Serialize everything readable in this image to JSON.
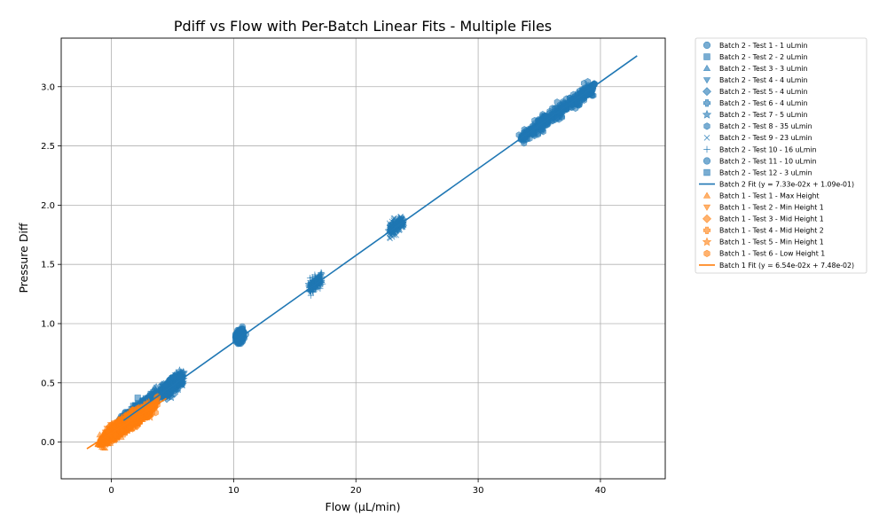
{
  "chart_data": {
    "type": "scatter",
    "title": "Pdiff vs Flow with Per-Batch Linear Fits - Multiple Files",
    "xlabel": "Flow (µL/min)",
    "ylabel": "Pressure Diff",
    "xlim": [
      -4.1,
      45.3
    ],
    "ylim": [
      -0.31,
      3.41
    ],
    "xticks": [
      0,
      10,
      20,
      30,
      40
    ],
    "yticks": [
      0.0,
      0.5,
      1.0,
      1.5,
      2.0,
      2.5,
      3.0
    ],
    "xtick_labels": [
      "0",
      "10",
      "20",
      "30",
      "40"
    ],
    "ytick_labels": [
      "0.0",
      "0.5",
      "1.0",
      "1.5",
      "2.0",
      "2.5",
      "3.0"
    ],
    "grid": true,
    "legend_position": "outside-right",
    "colors": {
      "batch2": "#1f77b4",
      "batch1": "#ff7f0e"
    },
    "series": [
      {
        "name": "Batch 2 - Test 1 - 1 uLmin",
        "batch": 2,
        "marker": "circle",
        "flow_center": 1.0,
        "flow_spread": 0.9,
        "pdiff_center": 0.18,
        "n": 130
      },
      {
        "name": "Batch 2 - Test 2 - 2 uLmin",
        "batch": 2,
        "marker": "square",
        "flow_center": 2.2,
        "flow_spread": 1.0,
        "pdiff_center": 0.27,
        "n": 130
      },
      {
        "name": "Batch 2 - Test 3 - 3 uLmin",
        "batch": 2,
        "marker": "triangle-up",
        "flow_center": 3.2,
        "flow_spread": 1.0,
        "pdiff_center": 0.35,
        "n": 130
      },
      {
        "name": "Batch 2 - Test 4 - 4 uLmin",
        "batch": 2,
        "marker": "triangle-down",
        "flow_center": 4.2,
        "flow_spread": 1.0,
        "pdiff_center": 0.42,
        "n": 130
      },
      {
        "name": "Batch 2 - Test 5 - 4 uLmin",
        "batch": 2,
        "marker": "diamond",
        "flow_center": 4.6,
        "flow_spread": 1.0,
        "pdiff_center": 0.45,
        "n": 130
      },
      {
        "name": "Batch 2 - Test 6 - 4 uLmin",
        "batch": 2,
        "marker": "plus-filled",
        "flow_center": 5.0,
        "flow_spread": 1.0,
        "pdiff_center": 0.48,
        "n": 130
      },
      {
        "name": "Batch 2 - Test 7 - 5 uLmin",
        "batch": 2,
        "marker": "star",
        "flow_center": 5.4,
        "flow_spread": 0.9,
        "pdiff_center": 0.52,
        "n": 130
      },
      {
        "name": "Batch 2 - Test 8 - 35 uLmin",
        "batch": 2,
        "marker": "hexagon",
        "flow_center": 36.5,
        "flow_spread": 6.0,
        "pdiff_center": 2.78,
        "n": 420
      },
      {
        "name": "Batch 2 - Test 9 - 23 uLmin",
        "batch": 2,
        "marker": "x",
        "flow_center": 23.3,
        "flow_spread": 1.1,
        "pdiff_center": 1.83,
        "n": 260
      },
      {
        "name": "Batch 2 - Test 10 - 16 uLmin",
        "batch": 2,
        "marker": "plus",
        "flow_center": 16.7,
        "flow_spread": 0.9,
        "pdiff_center": 1.34,
        "n": 230
      },
      {
        "name": "Batch 2 - Test 11 - 10 uLmin",
        "batch": 2,
        "marker": "circle",
        "flow_center": 10.5,
        "flow_spread": 0.5,
        "pdiff_center": 0.89,
        "n": 200
      },
      {
        "name": "Batch 2 - Test 12 - 3 uLmin",
        "batch": 2,
        "marker": "square",
        "flow_center": 3.0,
        "flow_spread": 1.0,
        "pdiff_center": 0.33,
        "n": 130
      },
      {
        "name": "Batch 1 - Test 1 - Max Height",
        "batch": 1,
        "marker": "triangle-up",
        "flow_center": 0.0,
        "flow_spread": 2.0,
        "pdiff_center": 0.06,
        "n": 200
      },
      {
        "name": "Batch 1 - Test 2 - Min Height 1",
        "batch": 1,
        "marker": "triangle-down",
        "flow_center": 0.5,
        "flow_spread": 2.2,
        "pdiff_center": 0.1,
        "n": 200
      },
      {
        "name": "Batch 1 - Test 3 - Mid Height 1",
        "batch": 1,
        "marker": "diamond",
        "flow_center": 1.0,
        "flow_spread": 2.5,
        "pdiff_center": 0.14,
        "n": 200
      },
      {
        "name": "Batch 1 - Test 4 - Mid Height 2",
        "batch": 1,
        "marker": "plus-filled",
        "flow_center": 1.5,
        "flow_spread": 2.5,
        "pdiff_center": 0.17,
        "n": 200
      },
      {
        "name": "Batch 1 - Test 5 - Min Height 1",
        "batch": 1,
        "marker": "star",
        "flow_center": 2.0,
        "flow_spread": 2.5,
        "pdiff_center": 0.21,
        "n": 200
      },
      {
        "name": "Batch 1 - Test 6 - Low Height 1",
        "batch": 1,
        "marker": "hexagon",
        "flow_center": 2.5,
        "flow_spread": 2.4,
        "pdiff_center": 0.24,
        "n": 200
      }
    ],
    "fits": [
      {
        "name": "Batch 2 Fit (y = 7.33e-02x + 1.09e-01)",
        "batch": 2,
        "slope": 0.0733,
        "intercept": 0.109,
        "x_range": [
          1.0,
          43.0
        ]
      },
      {
        "name": "Batch 1 Fit (y = 6.54e-02x + 7.48e-02)",
        "batch": 1,
        "slope": 0.0654,
        "intercept": 0.0748,
        "x_range": [
          -2.0,
          4.5
        ]
      }
    ],
    "legend_order": [
      "s0",
      "s1",
      "s2",
      "s3",
      "s4",
      "s5",
      "s6",
      "s7",
      "s8",
      "s9",
      "s10",
      "s11",
      "f0",
      "s12",
      "s13",
      "s14",
      "s15",
      "s16",
      "s17",
      "f1"
    ]
  }
}
